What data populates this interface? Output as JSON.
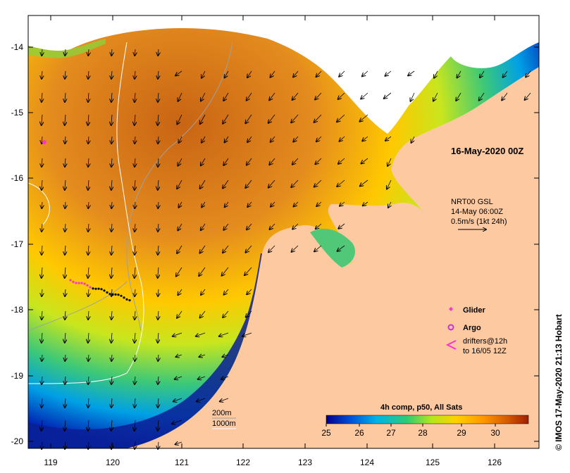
{
  "map": {
    "date_label": "16-May-2020 00Z",
    "credit": "© IMOS 17-May-2020 21:13 Hobart",
    "current_info": {
      "line1": "NRT00 GSL",
      "line2": "14-May 06:00Z",
      "line3": "0.5m/s (1kt 24h)"
    },
    "isobath_labels": [
      "200m",
      "1000m"
    ],
    "longitude_ticks": [
      "119",
      "120",
      "121",
      "122",
      "123",
      "124",
      "125",
      "126"
    ],
    "latitude_ticks": [
      "-14",
      "-15",
      "-16",
      "-17",
      "-18",
      "-19",
      "-20"
    ],
    "legend": {
      "glider": "Glider",
      "argo": "Argo",
      "drifters_line1": "drifters@12h",
      "drifters_line2": "to 16/05 12Z"
    },
    "colorbar": {
      "title": "4h comp, p50, All Sats",
      "ticks": [
        "25",
        "26",
        "27",
        "28",
        "29",
        "30"
      ],
      "colors": [
        "#00008b",
        "#0050d8",
        "#00b4e6",
        "#2ecc71",
        "#b4e61e",
        "#ffd200",
        "#ff9600",
        "#d25a00",
        "#a01e00"
      ]
    },
    "colors": {
      "land": "#fdc9a1",
      "cloud": "#ffffff",
      "glider": "#ff33cc",
      "argo": "#cc33cc"
    }
  }
}
